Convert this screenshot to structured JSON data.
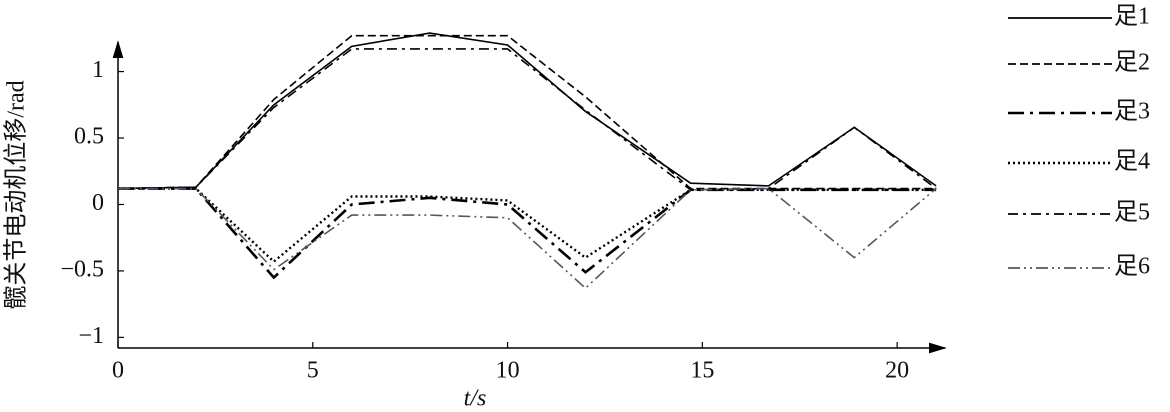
{
  "chart_data": {
    "type": "line",
    "x_label": "t/s",
    "y_label": "髋关节电动机位移/rad",
    "x": [
      0,
      2,
      4,
      6,
      8,
      10,
      12,
      14.7,
      16.7,
      18.9,
      21
    ],
    "series": [
      {
        "name": "足1",
        "color": "#000000",
        "dash": "solid",
        "values": [
          0.12,
          0.13,
          0.75,
          1.19,
          1.29,
          1.2,
          0.7,
          0.16,
          0.14,
          0.58,
          0.14
        ]
      },
      {
        "name": "足2",
        "color": "#000000",
        "dash": "dashed",
        "values": [
          0.12,
          0.13,
          0.79,
          1.27,
          1.27,
          1.27,
          0.81,
          0.12,
          0.12,
          0.12,
          0.12
        ]
      },
      {
        "name": "足3",
        "color": "#000000",
        "dash": "longdashdot",
        "values": [
          0.12,
          0.12,
          -0.55,
          0.0,
          0.05,
          0.0,
          -0.51,
          0.11,
          0.11,
          0.11,
          0.11
        ]
      },
      {
        "name": "足4",
        "color": "#000000",
        "dash": "dotted",
        "values": [
          0.12,
          0.12,
          -0.43,
          0.06,
          0.06,
          0.03,
          -0.4,
          0.11,
          0.11,
          0.11,
          0.11
        ]
      },
      {
        "name": "足5",
        "color": "#000000",
        "dash": "dashdot",
        "values": [
          0.12,
          0.13,
          0.73,
          1.17,
          1.17,
          1.17,
          0.71,
          0.11,
          0.12,
          0.58,
          0.12
        ]
      },
      {
        "name": "足6",
        "color": "#4a5a6a",
        "dash": "dashdotdot",
        "values": [
          0.12,
          0.12,
          -0.49,
          -0.08,
          -0.08,
          -0.1,
          -0.63,
          0.11,
          0.12,
          -0.4,
          0.12
        ]
      }
    ],
    "xlim": [
      0,
      21.1
    ],
    "ylim": [
      -1.08,
      1.2
    ],
    "xticks": [
      0,
      5,
      10,
      15,
      20
    ],
    "yticks": [
      {
        "value": -1,
        "label": "−1"
      },
      {
        "value": -0.5,
        "label": "−0.5"
      },
      0,
      0.5,
      1
    ],
    "legend": "right"
  }
}
